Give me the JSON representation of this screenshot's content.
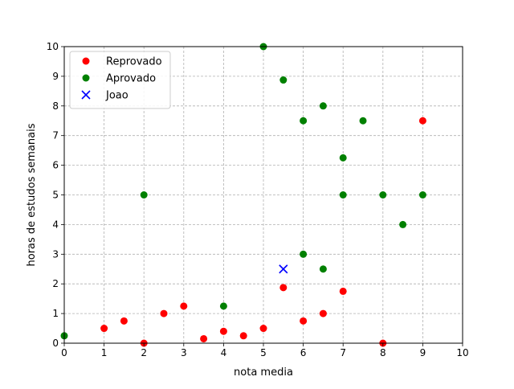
{
  "chart_data": {
    "type": "scatter",
    "title": "",
    "xlabel": "nota media",
    "ylabel": "horas de estudos semanais",
    "xlim": [
      0,
      10
    ],
    "ylim": [
      0,
      10
    ],
    "xticks": [
      "0",
      "1",
      "2",
      "3",
      "4",
      "5",
      "6",
      "7",
      "8",
      "9",
      "10"
    ],
    "yticks": [
      "0",
      "1",
      "2",
      "3",
      "4",
      "5",
      "6",
      "7",
      "8",
      "9",
      "10"
    ],
    "grid": true,
    "legend_position": "upper-left",
    "series": [
      {
        "name": "Reprovado",
        "color": "#ff0000",
        "marker": "circle",
        "points": [
          [
            1,
            0.5
          ],
          [
            1.5,
            0.75
          ],
          [
            2,
            0
          ],
          [
            2.5,
            1
          ],
          [
            3,
            1.25
          ],
          [
            3.5,
            0.15
          ],
          [
            4,
            0.4
          ],
          [
            4.5,
            0.25
          ],
          [
            5,
            0.5
          ],
          [
            5.5,
            1.875
          ],
          [
            6,
            0.75
          ],
          [
            6.5,
            1
          ],
          [
            7,
            1.75
          ],
          [
            8,
            0
          ],
          [
            9,
            7.5
          ]
        ]
      },
      {
        "name": "Aprovado",
        "color": "#008000",
        "marker": "circle",
        "points": [
          [
            0,
            0.25
          ],
          [
            2,
            5
          ],
          [
            4,
            1.25
          ],
          [
            5,
            10
          ],
          [
            5.5,
            8.875
          ],
          [
            6,
            7.5
          ],
          [
            6.5,
            8
          ],
          [
            6,
            3
          ],
          [
            6.5,
            2.5
          ],
          [
            7,
            6.25
          ],
          [
            7,
            5
          ],
          [
            7.5,
            7.5
          ],
          [
            8,
            5
          ],
          [
            8.5,
            4
          ],
          [
            9,
            5
          ]
        ]
      },
      {
        "name": "Joao",
        "color": "#0000ff",
        "marker": "x",
        "points": [
          [
            5.5,
            2.5
          ]
        ]
      }
    ]
  }
}
